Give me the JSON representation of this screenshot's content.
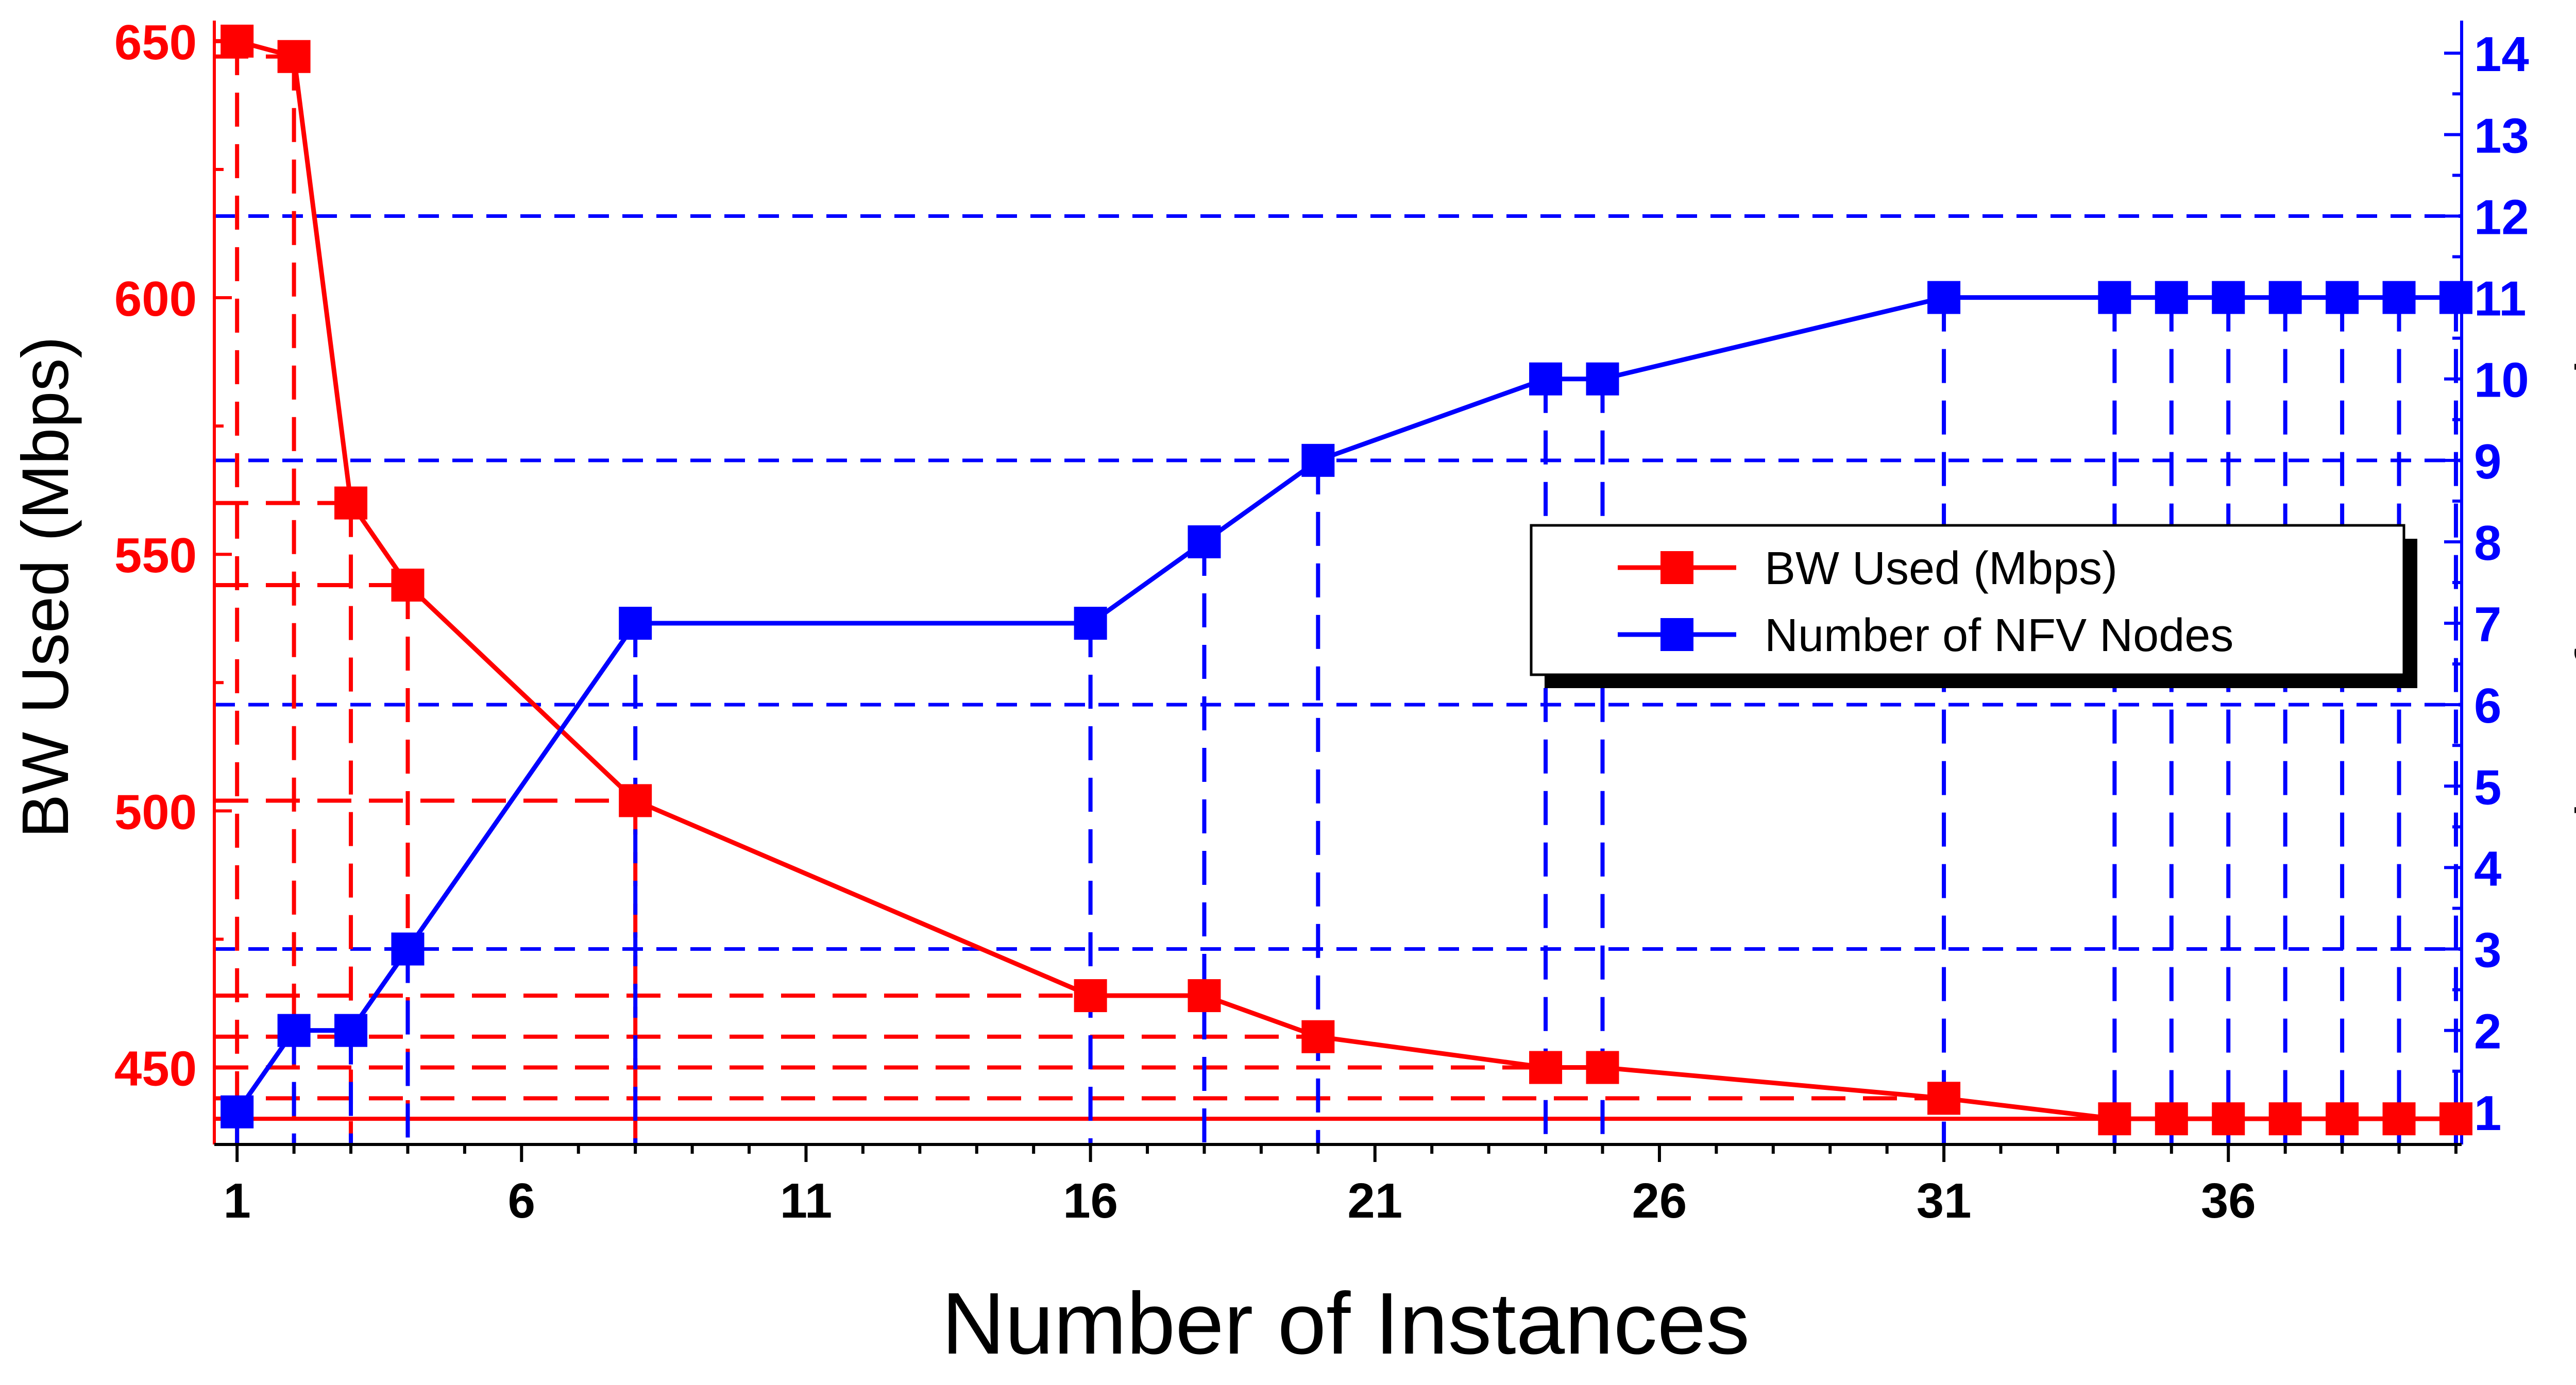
{
  "chart_data": {
    "type": "line",
    "xlabel": "Number of Instances",
    "ylabel_left": "BW Used (Mbps)",
    "ylabel_right": "Number of NFV Nodes",
    "xlim": [
      0.6,
      40.1
    ],
    "ylim_left": [
      435,
      654
    ],
    "ylim_right": [
      0.6,
      14.4
    ],
    "x_ticks": [
      1,
      6,
      11,
      16,
      21,
      26,
      31,
      36
    ],
    "y_left_ticks": [
      450,
      500,
      550,
      600,
      650
    ],
    "y_right_ticks": [
      1,
      2,
      3,
      4,
      5,
      6,
      7,
      8,
      9,
      10,
      11,
      12,
      13,
      14
    ],
    "right_gridlines": [
      3,
      6,
      9,
      12
    ],
    "legend_position": "center-right",
    "series": [
      {
        "name": "BW Used (Mbps)",
        "color": "#ff0000",
        "axis": "left",
        "marker": "square",
        "x": [
          1,
          2,
          3,
          4,
          8,
          16,
          18,
          20,
          24,
          25,
          31,
          34,
          35,
          36,
          37,
          38,
          39,
          40
        ],
        "values": [
          650,
          647,
          560,
          544,
          502,
          464,
          464,
          456,
          450,
          450,
          444,
          440,
          440,
          440,
          440,
          440,
          440,
          440
        ]
      },
      {
        "name": "Number of NFV Nodes",
        "color": "#0000ff",
        "axis": "right",
        "marker": "square",
        "x": [
          1,
          2,
          3,
          4,
          8,
          16,
          18,
          20,
          24,
          25,
          31,
          34,
          35,
          36,
          37,
          38,
          39,
          40
        ],
        "values": [
          1,
          2,
          2,
          3,
          7,
          7,
          8,
          9,
          10,
          10,
          11,
          11,
          11,
          11,
          11,
          11,
          11,
          11
        ]
      }
    ]
  }
}
